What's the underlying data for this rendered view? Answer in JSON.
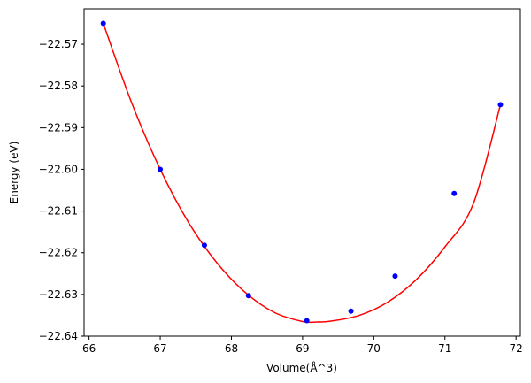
{
  "chart_data": {
    "type": "scatter",
    "title": "",
    "xlabel": "Volume(Å^3)",
    "ylabel": "Energy (eV)",
    "xlim": [
      65.93,
      72.06
    ],
    "ylim": [
      -22.64,
      -22.5615
    ],
    "xticks": [
      66,
      67,
      68,
      69,
      70,
      71,
      72
    ],
    "xtick_labels": [
      "66",
      "67",
      "68",
      "69",
      "70",
      "71",
      "72"
    ],
    "yticks": [
      -22.64,
      -22.63,
      -22.62,
      -22.61,
      -22.6,
      -22.59,
      -22.58,
      -22.57
    ],
    "ytick_labels": [
      "−22.64",
      "−22.63",
      "−22.62",
      "−22.61",
      "−22.60",
      "−22.59",
      "−22.58",
      "−22.57"
    ],
    "grid": false,
    "legend": false,
    "colors": {
      "points": "#0000ff",
      "fit": "#ff0000",
      "axes": "#000000"
    },
    "series": [
      {
        "kind": "points",
        "x": [
          66.2,
          67.0,
          67.62,
          68.24,
          69.06,
          69.68,
          70.3,
          71.13,
          71.78
        ],
        "y": [
          -22.565,
          -22.6,
          -22.6182,
          -22.6303,
          -22.6363,
          -22.634,
          -22.6256,
          -22.6058,
          -22.5845
        ]
      },
      {
        "kind": "fit-line",
        "x": [
          66.2,
          66.6,
          67.0,
          67.4,
          67.8,
          68.2,
          68.6,
          69.0,
          69.2,
          69.4,
          69.8,
          70.2,
          70.6,
          71.0,
          71.4,
          71.78
        ],
        "y": [
          -22.565,
          -22.5841,
          -22.6,
          -22.6128,
          -22.6225,
          -22.6296,
          -22.6343,
          -22.6365,
          -22.6366,
          -22.6364,
          -22.635,
          -22.6318,
          -22.6264,
          -22.6186,
          -22.6082,
          -22.5845
        ]
      }
    ]
  }
}
